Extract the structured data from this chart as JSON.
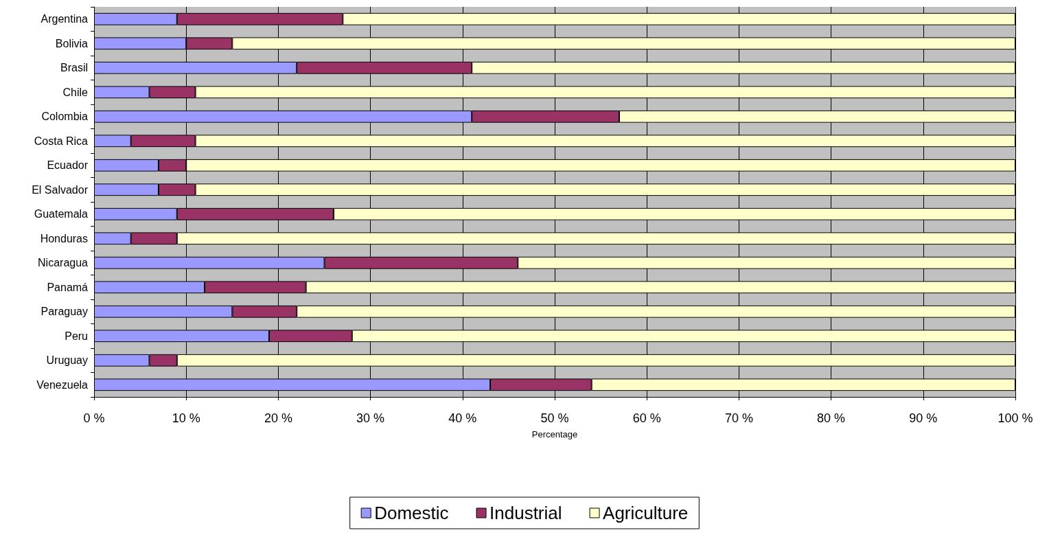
{
  "chart_data": {
    "type": "bar",
    "orientation": "horizontal",
    "stacked": true,
    "xlabel": "Percentage",
    "categories": [
      "Argentina",
      "Bolivia",
      "Brasil",
      "Chile",
      "Colombia",
      "Costa Rica",
      "Ecuador",
      "El Salvador",
      "Guatemala",
      "Honduras",
      "Nicaragua",
      "Panamá",
      "Paraguay",
      "Peru",
      "Uruguay",
      "Venezuela"
    ],
    "series": [
      {
        "name": "Domestic",
        "color": "#9999ff",
        "values": [
          9,
          10,
          22,
          6,
          41,
          4,
          7,
          7,
          9,
          4,
          25,
          12,
          15,
          19,
          6,
          43
        ]
      },
      {
        "name": "Industrial",
        "color": "#993366",
        "values": [
          18,
          5,
          19,
          5,
          16,
          7,
          3,
          4,
          17,
          5,
          21,
          11,
          7,
          9,
          3,
          11
        ]
      },
      {
        "name": "Agriculture",
        "color": "#ffffcc",
        "values": [
          73,
          85,
          59,
          89,
          43,
          89,
          90,
          89,
          74,
          91,
          54,
          77,
          78,
          72,
          91,
          46
        ]
      }
    ],
    "xlim": [
      0,
      100
    ],
    "xticks": [
      {
        "value": 0,
        "label": "0 %"
      },
      {
        "value": 10,
        "label": "10 %"
      },
      {
        "value": 20,
        "label": "20 %"
      },
      {
        "value": 30,
        "label": "30 %"
      },
      {
        "value": 40,
        "label": "40 %"
      },
      {
        "value": 50,
        "label": "50 %"
      },
      {
        "value": 60,
        "label": "60 %"
      },
      {
        "value": 70,
        "label": "70 %"
      },
      {
        "value": 80,
        "label": "80 %"
      },
      {
        "value": 90,
        "label": "90 %"
      },
      {
        "value": 100,
        "label": "100 %"
      }
    ],
    "grid": "x",
    "legend": "bottom"
  }
}
